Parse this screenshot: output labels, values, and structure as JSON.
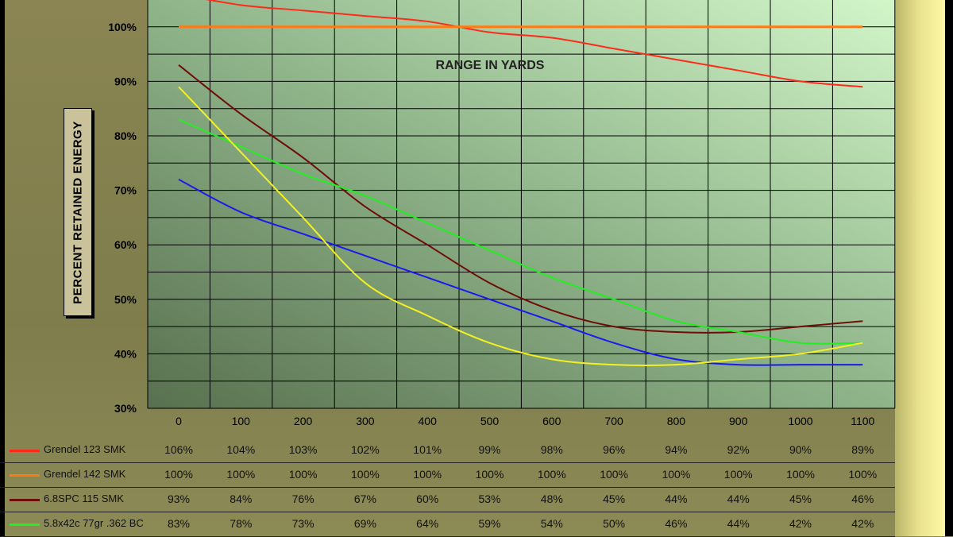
{
  "chart_data": {
    "type": "line",
    "title": "",
    "xlabel": "RANGE IN YARDS",
    "ylabel": "PERCENT RETAINED ENERGY",
    "x": [
      0,
      100,
      200,
      300,
      400,
      500,
      600,
      700,
      800,
      900,
      1000,
      1100
    ],
    "ylim": [
      30,
      105
    ],
    "yticks": [
      "30%",
      "40%",
      "50%",
      "60%",
      "70%",
      "80%",
      "90%",
      "100%"
    ],
    "grid": true,
    "series": [
      {
        "name": "Grendel 123 SMK",
        "color": "#ff2a1a",
        "values": [
          106,
          104,
          103,
          102,
          101,
          99,
          98,
          96,
          94,
          92,
          90,
          89
        ],
        "labels": [
          "106%",
          "104%",
          "103%",
          "102%",
          "101%",
          "99%",
          "98%",
          "96%",
          "94%",
          "92%",
          "90%",
          "89%"
        ]
      },
      {
        "name": "Grendel 142 SMK",
        "color": "#ff7a12",
        "values": [
          100,
          100,
          100,
          100,
          100,
          100,
          100,
          100,
          100,
          100,
          100,
          100
        ],
        "labels": [
          "100%",
          "100%",
          "100%",
          "100%",
          "100%",
          "100%",
          "100%",
          "100%",
          "100%",
          "100%",
          "100%",
          "100%"
        ]
      },
      {
        "name": "6.8SPC 115 SMK",
        "color": "#6e0d08",
        "values": [
          93,
          84,
          76,
          67,
          60,
          53,
          48,
          45,
          44,
          44,
          45,
          46
        ],
        "labels": [
          "93%",
          "84%",
          "76%",
          "67%",
          "60%",
          "53%",
          "48%",
          "45%",
          "44%",
          "44%",
          "45%",
          "46%"
        ]
      },
      {
        "name": "5.8x42c 77gr .362 BC",
        "color": "#22ee22",
        "values": [
          83,
          78,
          73,
          69,
          64,
          59,
          54,
          50,
          46,
          44,
          42,
          42
        ],
        "labels": [
          "83%",
          "78%",
          "73%",
          "69%",
          "64%",
          "59%",
          "54%",
          "50%",
          "46%",
          "44%",
          "42%",
          "42%"
        ]
      },
      {
        "color": "#1a1aee",
        "values": [
          72,
          66,
          62,
          58,
          54,
          50,
          46,
          42,
          39,
          38,
          38,
          38
        ]
      },
      {
        "color": "#f4f022",
        "values": [
          89,
          77,
          65,
          53,
          47,
          42,
          39,
          38,
          38,
          39,
          40,
          42
        ]
      }
    ]
  }
}
